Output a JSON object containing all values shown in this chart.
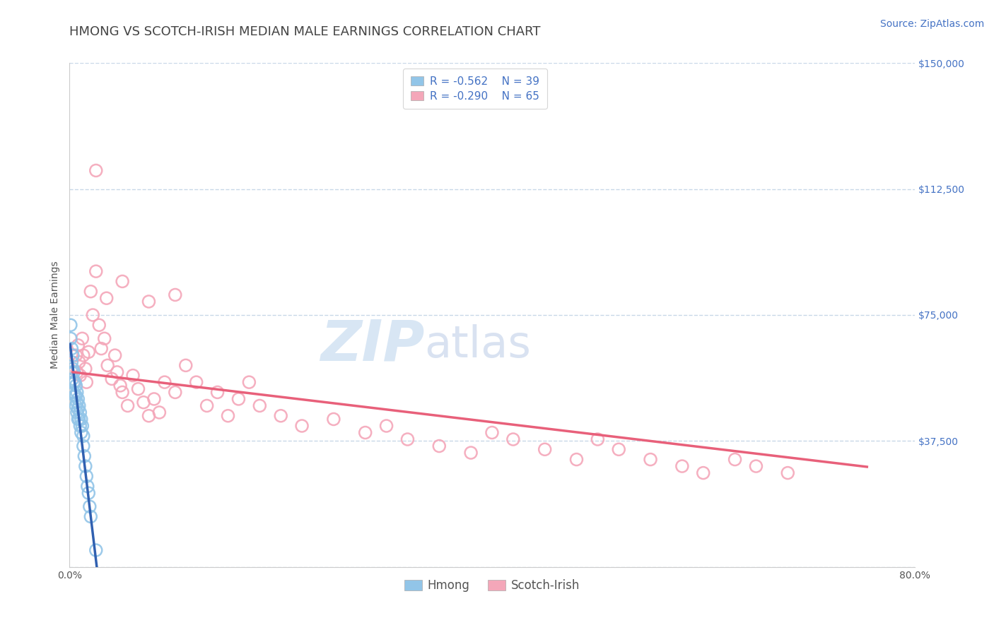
{
  "title": "HMONG VS SCOTCH-IRISH MEDIAN MALE EARNINGS CORRELATION CHART",
  "source_text": "Source: ZipAtlas.com",
  "ylabel": "Median Male Earnings",
  "xlim": [
    0.0,
    0.8
  ],
  "ylim": [
    0,
    150000
  ],
  "xticks": [
    0.0,
    0.1,
    0.2,
    0.3,
    0.4,
    0.5,
    0.6,
    0.7,
    0.8
  ],
  "yticks": [
    0,
    37500,
    75000,
    112500,
    150000
  ],
  "yticklabels": [
    "",
    "$37,500",
    "$75,000",
    "$112,500",
    "$150,000"
  ],
  "hmong_R": -0.562,
  "hmong_N": 39,
  "scotch_R": -0.29,
  "scotch_N": 65,
  "hmong_color": "#92C5E8",
  "scotch_color": "#F4A7B9",
  "hmong_line_color": "#3060B0",
  "scotch_line_color": "#E8607A",
  "legend_text_color": "#4472C4",
  "ytick_color": "#4472C4",
  "watermark_zip": "ZIP",
  "watermark_atlas": "atlas",
  "background_color": "#FFFFFF",
  "grid_color": "#C8D8E8",
  "hmong_x": [
    0.001,
    0.001,
    0.002,
    0.002,
    0.002,
    0.003,
    0.003,
    0.003,
    0.004,
    0.004,
    0.004,
    0.005,
    0.005,
    0.006,
    0.006,
    0.006,
    0.007,
    0.007,
    0.007,
    0.008,
    0.008,
    0.008,
    0.009,
    0.009,
    0.01,
    0.01,
    0.011,
    0.011,
    0.012,
    0.013,
    0.013,
    0.014,
    0.015,
    0.016,
    0.017,
    0.018,
    0.019,
    0.02,
    0.025
  ],
  "hmong_y": [
    72000,
    68000,
    65000,
    61000,
    58000,
    63000,
    59000,
    56000,
    58000,
    55000,
    52000,
    55000,
    51000,
    54000,
    51000,
    48000,
    52000,
    49000,
    46000,
    50000,
    47000,
    44000,
    48000,
    44000,
    46000,
    42000,
    44000,
    40000,
    42000,
    39000,
    36000,
    33000,
    30000,
    27000,
    24000,
    22000,
    18000,
    15000,
    5000
  ],
  "scotch_x": [
    0.004,
    0.006,
    0.007,
    0.008,
    0.009,
    0.01,
    0.012,
    0.013,
    0.015,
    0.016,
    0.018,
    0.02,
    0.022,
    0.025,
    0.028,
    0.03,
    0.033,
    0.036,
    0.04,
    0.043,
    0.045,
    0.048,
    0.05,
    0.055,
    0.06,
    0.065,
    0.07,
    0.075,
    0.08,
    0.085,
    0.09,
    0.1,
    0.11,
    0.12,
    0.13,
    0.14,
    0.15,
    0.16,
    0.17,
    0.18,
    0.2,
    0.22,
    0.25,
    0.28,
    0.3,
    0.32,
    0.35,
    0.38,
    0.4,
    0.42,
    0.45,
    0.48,
    0.5,
    0.52,
    0.55,
    0.58,
    0.6,
    0.63,
    0.65,
    0.68,
    0.025,
    0.035,
    0.05,
    0.075,
    0.1
  ],
  "scotch_y": [
    55000,
    63000,
    58000,
    66000,
    61000,
    57000,
    68000,
    63000,
    59000,
    55000,
    64000,
    82000,
    75000,
    88000,
    72000,
    65000,
    68000,
    60000,
    56000,
    63000,
    58000,
    54000,
    52000,
    48000,
    57000,
    53000,
    49000,
    45000,
    50000,
    46000,
    55000,
    52000,
    60000,
    55000,
    48000,
    52000,
    45000,
    50000,
    55000,
    48000,
    45000,
    42000,
    44000,
    40000,
    42000,
    38000,
    36000,
    34000,
    40000,
    38000,
    35000,
    32000,
    38000,
    35000,
    32000,
    30000,
    28000,
    32000,
    30000,
    28000,
    118000,
    80000,
    85000,
    79000,
    81000
  ],
  "title_fontsize": 13,
  "axis_label_fontsize": 10,
  "tick_fontsize": 10,
  "legend_fontsize": 11,
  "source_fontsize": 10
}
